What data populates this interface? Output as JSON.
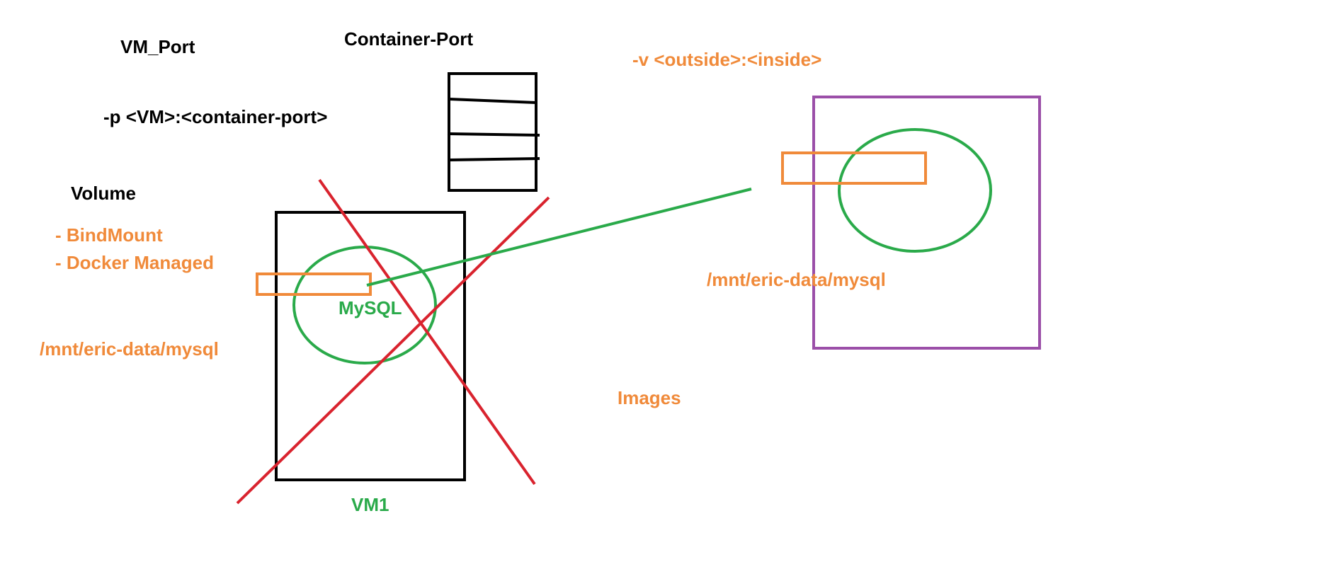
{
  "labels": {
    "vm_port": "VM_Port",
    "container_port": "Container-Port",
    "port_flag": "-p <VM>:<container-port>",
    "volume_flag": "-v <outside>:<inside>",
    "volume": "Volume",
    "bindmount": "- BindMount",
    "docker_managed": "- Docker Managed",
    "left_path": "/mnt/eric-data/mysql",
    "mysql": "MySQL",
    "vm1": "VM1",
    "right_path": "/mnt/eric-data/mysql",
    "images": "Images"
  },
  "colors": {
    "black": "#000000",
    "orange": "#f08a3a",
    "green": "#2aaa4a",
    "red": "#d9232e",
    "purple": "#9b4fa8"
  }
}
